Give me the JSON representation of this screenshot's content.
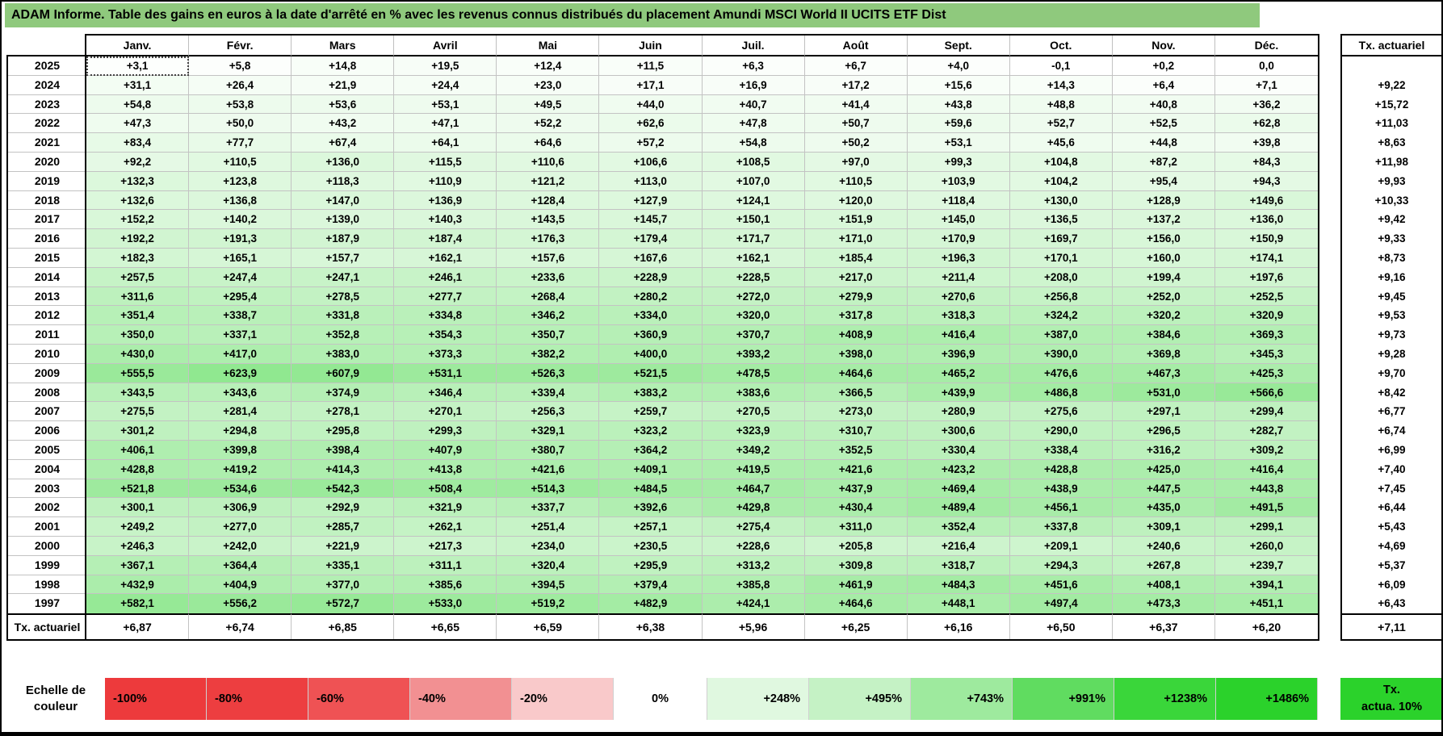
{
  "chart_data": {
    "type": "heatmap",
    "title": "ADAM Informe. Table des gains en euros à la date d'arrêté en % avec les revenus connus distribués du placement Amundi MSCI World II UCITS ETF Dist",
    "columns": [
      "Janv.",
      "Févr.",
      "Mars",
      "Avril",
      "Mai",
      "Juin",
      "Juil.",
      "Août",
      "Sept.",
      "Oct.",
      "Nov.",
      "Déc."
    ],
    "right_column_header": "Tx. actuariel",
    "selected_cell": {
      "year": "2025",
      "month": "Janv."
    },
    "rows": [
      {
        "year": "2025",
        "values": [
          "+3,1",
          "+5,8",
          "+14,8",
          "+19,5",
          "+12,4",
          "+11,5",
          "+6,3",
          "+6,7",
          "+4,0",
          "-0,1",
          "+0,2",
          "0,0"
        ],
        "tx_actuariel": ""
      },
      {
        "year": "2024",
        "values": [
          "+31,1",
          "+26,4",
          "+21,9",
          "+24,4",
          "+23,0",
          "+17,1",
          "+16,9",
          "+17,2",
          "+15,6",
          "+14,3",
          "+6,4",
          "+7,1"
        ],
        "tx_actuariel": "+9,22"
      },
      {
        "year": "2023",
        "values": [
          "+54,8",
          "+53,8",
          "+53,6",
          "+53,1",
          "+49,5",
          "+44,0",
          "+40,7",
          "+41,4",
          "+43,8",
          "+48,8",
          "+40,8",
          "+36,2"
        ],
        "tx_actuariel": "+15,72"
      },
      {
        "year": "2022",
        "values": [
          "+47,3",
          "+50,0",
          "+43,2",
          "+47,1",
          "+52,2",
          "+62,6",
          "+47,8",
          "+50,7",
          "+59,6",
          "+52,7",
          "+52,5",
          "+62,8"
        ],
        "tx_actuariel": "+11,03"
      },
      {
        "year": "2021",
        "values": [
          "+83,4",
          "+77,7",
          "+67,4",
          "+64,1",
          "+64,6",
          "+57,2",
          "+54,8",
          "+50,2",
          "+53,1",
          "+45,6",
          "+44,8",
          "+39,8"
        ],
        "tx_actuariel": "+8,63"
      },
      {
        "year": "2020",
        "values": [
          "+92,2",
          "+110,5",
          "+136,0",
          "+115,5",
          "+110,6",
          "+106,6",
          "+108,5",
          "+97,0",
          "+99,3",
          "+104,8",
          "+87,2",
          "+84,3"
        ],
        "tx_actuariel": "+11,98"
      },
      {
        "year": "2019",
        "values": [
          "+132,3",
          "+123,8",
          "+118,3",
          "+110,9",
          "+121,2",
          "+113,0",
          "+107,0",
          "+110,5",
          "+103,9",
          "+104,2",
          "+95,4",
          "+94,3"
        ],
        "tx_actuariel": "+9,93"
      },
      {
        "year": "2018",
        "values": [
          "+132,6",
          "+136,8",
          "+147,0",
          "+136,9",
          "+128,4",
          "+127,9",
          "+124,1",
          "+120,0",
          "+118,4",
          "+130,0",
          "+128,9",
          "+149,6"
        ],
        "tx_actuariel": "+10,33"
      },
      {
        "year": "2017",
        "values": [
          "+152,2",
          "+140,2",
          "+139,0",
          "+140,3",
          "+143,5",
          "+145,7",
          "+150,1",
          "+151,9",
          "+145,0",
          "+136,5",
          "+137,2",
          "+136,0"
        ],
        "tx_actuariel": "+9,42"
      },
      {
        "year": "2016",
        "values": [
          "+192,2",
          "+191,3",
          "+187,9",
          "+187,4",
          "+176,3",
          "+179,4",
          "+171,7",
          "+171,0",
          "+170,9",
          "+169,7",
          "+156,0",
          "+150,9"
        ],
        "tx_actuariel": "+9,33"
      },
      {
        "year": "2015",
        "values": [
          "+182,3",
          "+165,1",
          "+157,7",
          "+162,1",
          "+157,6",
          "+167,6",
          "+162,1",
          "+185,4",
          "+196,3",
          "+170,1",
          "+160,0",
          "+174,1"
        ],
        "tx_actuariel": "+8,73"
      },
      {
        "year": "2014",
        "values": [
          "+257,5",
          "+247,4",
          "+247,1",
          "+246,1",
          "+233,6",
          "+228,9",
          "+228,5",
          "+217,0",
          "+211,4",
          "+208,0",
          "+199,4",
          "+197,6"
        ],
        "tx_actuariel": "+9,16"
      },
      {
        "year": "2013",
        "values": [
          "+311,6",
          "+295,4",
          "+278,5",
          "+277,7",
          "+268,4",
          "+280,2",
          "+272,0",
          "+279,9",
          "+270,6",
          "+256,8",
          "+252,0",
          "+252,5"
        ],
        "tx_actuariel": "+9,45"
      },
      {
        "year": "2012",
        "values": [
          "+351,4",
          "+338,7",
          "+331,8",
          "+334,8",
          "+346,2",
          "+334,0",
          "+320,0",
          "+317,8",
          "+318,3",
          "+324,2",
          "+320,2",
          "+320,9"
        ],
        "tx_actuariel": "+9,53"
      },
      {
        "year": "2011",
        "values": [
          "+350,0",
          "+337,1",
          "+352,8",
          "+354,3",
          "+350,7",
          "+360,9",
          "+370,7",
          "+408,9",
          "+416,4",
          "+387,0",
          "+384,6",
          "+369,3"
        ],
        "tx_actuariel": "+9,73"
      },
      {
        "year": "2010",
        "values": [
          "+430,0",
          "+417,0",
          "+383,0",
          "+373,3",
          "+382,2",
          "+400,0",
          "+393,2",
          "+398,0",
          "+396,9",
          "+390,0",
          "+369,8",
          "+345,3"
        ],
        "tx_actuariel": "+9,28"
      },
      {
        "year": "2009",
        "values": [
          "+555,5",
          "+623,9",
          "+607,9",
          "+531,1",
          "+526,3",
          "+521,5",
          "+478,5",
          "+464,6",
          "+465,2",
          "+476,6",
          "+467,3",
          "+425,3"
        ],
        "tx_actuariel": "+9,70"
      },
      {
        "year": "2008",
        "values": [
          "+343,5",
          "+343,6",
          "+374,9",
          "+346,4",
          "+339,4",
          "+383,2",
          "+383,6",
          "+366,5",
          "+439,9",
          "+486,8",
          "+531,0",
          "+566,6"
        ],
        "tx_actuariel": "+8,42"
      },
      {
        "year": "2007",
        "values": [
          "+275,5",
          "+281,4",
          "+278,1",
          "+270,1",
          "+256,3",
          "+259,7",
          "+270,5",
          "+273,0",
          "+280,9",
          "+275,6",
          "+297,1",
          "+299,4"
        ],
        "tx_actuariel": "+6,77"
      },
      {
        "year": "2006",
        "values": [
          "+301,2",
          "+294,8",
          "+295,8",
          "+299,3",
          "+329,1",
          "+323,2",
          "+323,9",
          "+310,7",
          "+300,6",
          "+290,0",
          "+296,5",
          "+282,7"
        ],
        "tx_actuariel": "+6,74"
      },
      {
        "year": "2005",
        "values": [
          "+406,1",
          "+399,8",
          "+398,4",
          "+407,9",
          "+380,7",
          "+364,2",
          "+349,2",
          "+352,5",
          "+330,4",
          "+338,4",
          "+316,2",
          "+309,2"
        ],
        "tx_actuariel": "+6,99"
      },
      {
        "year": "2004",
        "values": [
          "+428,8",
          "+419,2",
          "+414,3",
          "+413,8",
          "+421,6",
          "+409,1",
          "+419,5",
          "+421,6",
          "+423,2",
          "+428,8",
          "+425,0",
          "+416,4"
        ],
        "tx_actuariel": "+7,40"
      },
      {
        "year": "2003",
        "values": [
          "+521,8",
          "+534,6",
          "+542,3",
          "+508,4",
          "+514,3",
          "+484,5",
          "+464,7",
          "+437,9",
          "+469,4",
          "+438,9",
          "+447,5",
          "+443,8"
        ],
        "tx_actuariel": "+7,45"
      },
      {
        "year": "2002",
        "values": [
          "+300,1",
          "+306,9",
          "+292,9",
          "+321,9",
          "+337,7",
          "+392,6",
          "+429,8",
          "+430,4",
          "+489,4",
          "+456,1",
          "+435,0",
          "+491,5"
        ],
        "tx_actuariel": "+6,44"
      },
      {
        "year": "2001",
        "values": [
          "+249,2",
          "+277,0",
          "+285,7",
          "+262,1",
          "+251,4",
          "+257,1",
          "+275,4",
          "+311,0",
          "+352,4",
          "+337,8",
          "+309,1",
          "+299,1"
        ],
        "tx_actuariel": "+5,43"
      },
      {
        "year": "2000",
        "values": [
          "+246,3",
          "+242,0",
          "+221,9",
          "+217,3",
          "+234,0",
          "+230,5",
          "+228,6",
          "+205,8",
          "+216,4",
          "+209,1",
          "+240,6",
          "+260,0"
        ],
        "tx_actuariel": "+4,69"
      },
      {
        "year": "1999",
        "values": [
          "+367,1",
          "+364,4",
          "+335,1",
          "+311,1",
          "+320,4",
          "+295,9",
          "+313,2",
          "+309,8",
          "+318,7",
          "+294,3",
          "+267,8",
          "+239,7"
        ],
        "tx_actuariel": "+5,37"
      },
      {
        "year": "1998",
        "values": [
          "+432,9",
          "+404,9",
          "+377,0",
          "+385,6",
          "+394,5",
          "+379,4",
          "+385,8",
          "+461,9",
          "+484,3",
          "+451,6",
          "+408,1",
          "+394,1"
        ],
        "tx_actuariel": "+6,09"
      },
      {
        "year": "1997",
        "values": [
          "+582,1",
          "+556,2",
          "+572,7",
          "+533,0",
          "+519,2",
          "+482,9",
          "+424,1",
          "+464,6",
          "+448,1",
          "+497,4",
          "+473,3",
          "+451,1"
        ],
        "tx_actuariel": "+6,43"
      }
    ],
    "footer": {
      "label": "Tx. actuariel",
      "values": [
        "+6,87",
        "+6,74",
        "+6,85",
        "+6,65",
        "+6,59",
        "+6,38",
        "+5,96",
        "+6,25",
        "+6,16",
        "+6,50",
        "+6,37",
        "+6,20"
      ],
      "tx_actuariel": "+7,11"
    },
    "color_scale": {
      "label": "Echelle de couleur",
      "cells": [
        {
          "text": "-100%",
          "color": "#ED3A3C",
          "align": "left"
        },
        {
          "text": "-80%",
          "color": "#ED3E40",
          "align": "left"
        },
        {
          "text": "-60%",
          "color": "#EF5254",
          "align": "left"
        },
        {
          "text": "-40%",
          "color": "#F29092",
          "align": "left"
        },
        {
          "text": "-20%",
          "color": "#F9C9CA",
          "align": "left"
        },
        {
          "text": "0%",
          "color": "#FFFFFF",
          "align": "center"
        },
        {
          "text": "+248%",
          "color": "#E0F8E0",
          "align": "right"
        },
        {
          "text": "+495%",
          "color": "#C5F2C5",
          "align": "right"
        },
        {
          "text": "+743%",
          "color": "#9EEA9E",
          "align": "right"
        },
        {
          "text": "+991%",
          "color": "#60DC60",
          "align": "right"
        },
        {
          "text": "+1238%",
          "color": "#3AD63A",
          "align": "right"
        },
        {
          "text": "+1486%",
          "color": "#2BD22B",
          "align": "right"
        }
      ],
      "tx_box": {
        "line1": "Tx.",
        "line2": "actua. 10%",
        "color": "#2BD22B"
      }
    },
    "colors": {
      "title_bg": "#8FC97D",
      "positive_max": "#2BD22B",
      "negative_max": "#EE3B3B",
      "scale_max_pct": 1486,
      "scale_min_pct": -100
    }
  }
}
